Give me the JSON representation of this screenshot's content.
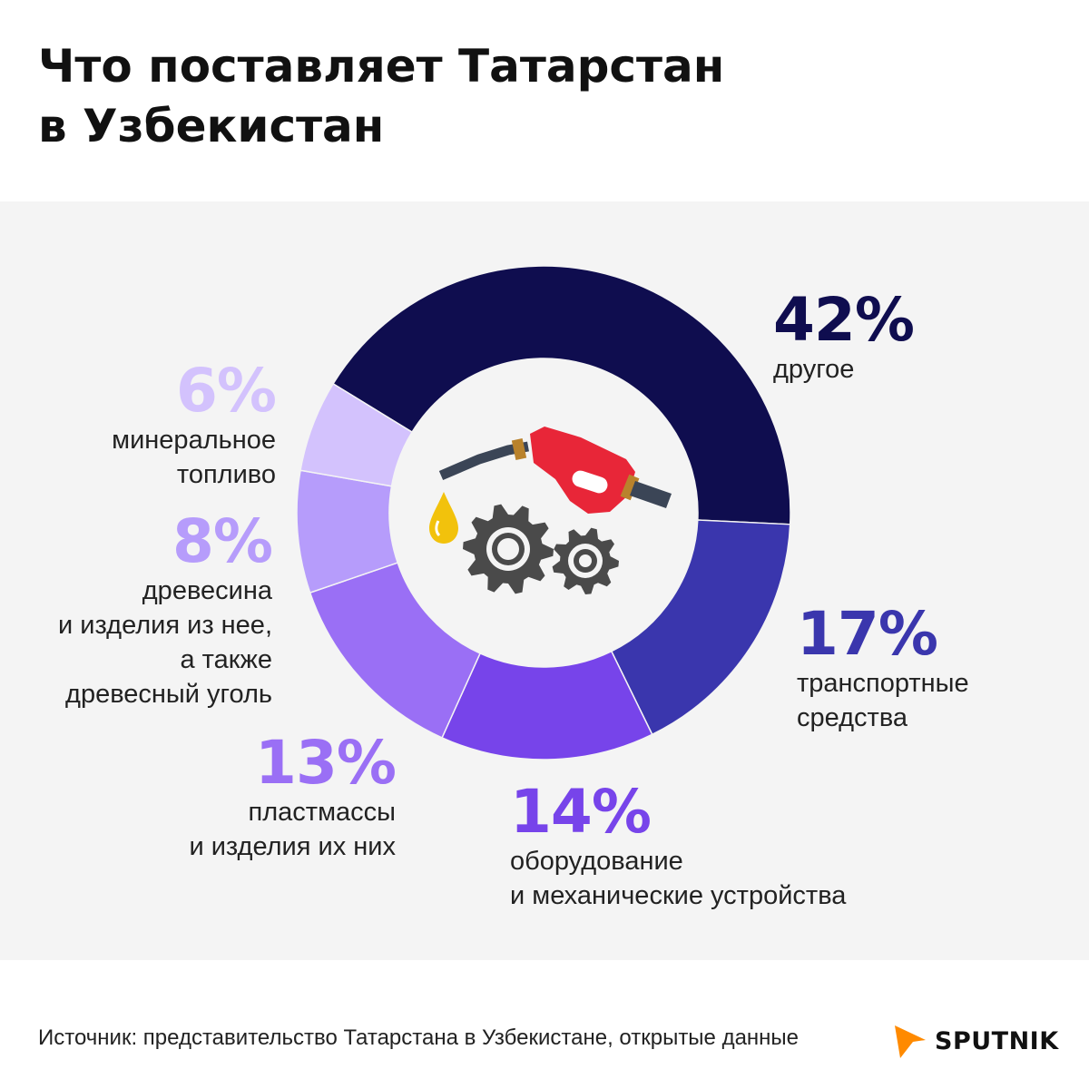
{
  "title": [
    "Что поставляет Татарстан",
    "в Узбекистан"
  ],
  "chart_data": {
    "type": "pie",
    "donut": true,
    "categories": [
      "другое",
      "транспортные средства",
      "оборудование и механические устройства",
      "пластмассы и изделия их них",
      "древесина и изделия из нее, а также древесный уголь",
      "минеральное топливо"
    ],
    "values": [
      42,
      17,
      14,
      13,
      8,
      6
    ],
    "value_labels": [
      "42%",
      "17%",
      "14%",
      "13%",
      "8%",
      "6%"
    ],
    "colors": [
      "#0f0d4f",
      "#3a36ad",
      "#7744ea",
      "#9a6ff5",
      "#b69cfb",
      "#d3c2fd"
    ],
    "label_lines": [
      [
        "другое"
      ],
      [
        "транспортные",
        "средства"
      ],
      [
        "оборудование",
        "и механические устройства"
      ],
      [
        "пластмассы",
        "и изделия их них"
      ],
      [
        "древесина",
        "и изделия из нее,",
        "а также",
        "древесный уголь"
      ],
      [
        "минеральное",
        "топливо"
      ]
    ]
  },
  "center_icon": "fuel-nozzle-and-gears-icon",
  "footer": {
    "source": "Источник: представительство Татарстана в Узбекистане, открытые данные"
  },
  "logo": {
    "text": "SPUTNIK",
    "color": "#ff8a00"
  }
}
